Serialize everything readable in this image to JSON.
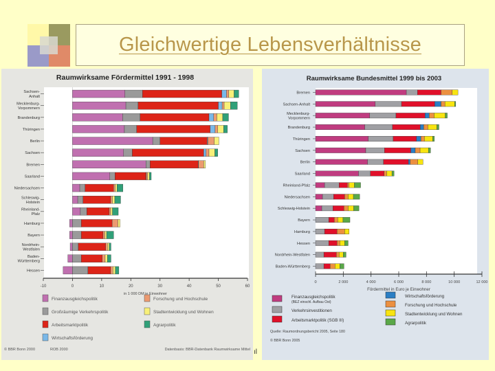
{
  "slide": {
    "title": "Gleichwertige Lebensverhältnisse",
    "background_color": "#ffffc8",
    "title_color": "#b8964a",
    "logo_colors": [
      "#fff8a8",
      "#9a9a60",
      "#9a9ac8",
      "#e08a68",
      "#d8d8d0"
    ]
  },
  "chart_data": [
    {
      "type": "bar",
      "orientation": "horizontal",
      "stacked": true,
      "title": "Raumwirksame Fördermittel 1991 - 1998",
      "xlabel": "in 1 000 DM je Einwohner",
      "ylabel": "",
      "xlim": [
        -10,
        60
      ],
      "xticks": [
        -10,
        0,
        10,
        20,
        30,
        40,
        50,
        60
      ],
      "xtick_labels": [
        "-10",
        "0",
        "10",
        "20",
        "30",
        "40",
        "50",
        "60"
      ],
      "grid": false,
      "legend_position": "bottom",
      "panel_background": "#e6e6e2",
      "plot_background": "#ffffff",
      "categories": [
        "Sachsen-Anhalt",
        "Mecklenburg-Vorpommern",
        "Brandenburg",
        "Thüringen",
        "Berlin",
        "Sachsen",
        "Bremen",
        "Saarland",
        "Niedersachsen",
        "Schleswig-Holstein",
        "Rheinland-Pfalz",
        "Hamburg",
        "Bayern",
        "Nordrhein-Westfalen",
        "Baden-Württemberg",
        "Hessen"
      ],
      "category_lines": [
        [
          "Sachsen-",
          "Anhalt"
        ],
        [
          "Mecklenburg-",
          "Vorpommern"
        ],
        [
          "Brandenburg"
        ],
        [
          "Thüringen"
        ],
        [
          "Berlin"
        ],
        [
          "Sachsen"
        ],
        [
          "Bremen"
        ],
        [
          "Saarland"
        ],
        [
          "Niedersachsen"
        ],
        [
          "Schleswig-",
          "Holstein"
        ],
        [
          "Rheinland-",
          "Pfalz"
        ],
        [
          "Hamburg"
        ],
        [
          "Bayern"
        ],
        [
          "Nordrhein-",
          "Westfalen"
        ],
        [
          "Baden-",
          "Württemberg"
        ],
        [
          "Hessen"
        ]
      ],
      "series": [
        {
          "name": "Finanzausgleichspolitik",
          "color": "#c070b0",
          "values": [
            18,
            18.3,
            17.2,
            17.8,
            27.5,
            17.5,
            25.2,
            12.8,
            2.5,
            1.8,
            2.7,
            -1,
            -1,
            -0.8,
            -1.6,
            -3.2
          ]
        },
        {
          "name": "Großräumige Verkehrspolitik",
          "color": "#9a9a9a",
          "values": [
            6,
            4.2,
            6,
            4.2,
            2.5,
            3,
            1.4,
            1.8,
            1.8,
            1.8,
            2.2,
            3,
            3,
            2,
            3,
            5.3
          ]
        },
        {
          "name": "Arbeitsmarktpolitik",
          "color": "#dd2418",
          "values": [
            27.2,
            27.5,
            23.6,
            25.2,
            16.2,
            24.5,
            16.5,
            10.6,
            9.8,
            9.5,
            7.7,
            10.6,
            7.5,
            9.4,
            7.2,
            7.8
          ]
        },
        {
          "name": "Wirtschaftsförderung",
          "color": "#7ab8e8",
          "values": [
            1.6,
            1.3,
            1.6,
            1.7,
            0.2,
            0.8,
            0.1,
            0.1,
            0,
            0,
            0,
            0,
            0,
            0,
            0,
            0
          ]
        },
        {
          "name": "Forschung und Hochschule",
          "color": "#ec9a70",
          "values": [
            0.8,
            0.7,
            1.1,
            0.9,
            2.2,
            1,
            1.8,
            0.5,
            0.6,
            0.6,
            0.5,
            2,
            0.6,
            0.6,
            1,
            0.8
          ]
        },
        {
          "name": "Stadtentwicklung und Wohnen",
          "color": "#f8f078",
          "values": [
            1.8,
            2.2,
            2,
            2,
            1.6,
            2,
            0.6,
            0.6,
            0.6,
            0.8,
            0.6,
            0.7,
            0.6,
            0.6,
            0.8,
            0.8
          ]
        },
        {
          "name": "Agrarpolitik",
          "color": "#30a078",
          "values": [
            1.6,
            2.3,
            2,
            1.3,
            0,
            1,
            0,
            0.6,
            2,
            2,
            2,
            0,
            2.4,
            0.6,
            1.2,
            1.2
          ]
        }
      ],
      "footer": {
        "left": "© BBR Bonn 2000",
        "middle": "ROB 2000",
        "right": "Datenbasis: BBR-Datenbank Raumwirksame Mittel"
      }
    },
    {
      "type": "bar",
      "orientation": "horizontal",
      "stacked": true,
      "title": "Raumwirksame Bundesmittel 1999 bis 2003",
      "xlabel": "Fördermittel in Euro je Einwohner",
      "ylabel": "",
      "xlim": [
        0,
        12000
      ],
      "xticks": [
        0,
        2000,
        4000,
        6000,
        8000,
        10000,
        12000
      ],
      "xtick_labels": [
        "0",
        "2 000",
        "4 000",
        "6 000",
        "8 000",
        "10 000",
        "12 000"
      ],
      "grid": false,
      "legend_position": "bottom",
      "panel_background": "#dde4ec",
      "plot_background": "#ffffff",
      "categories": [
        "Bremen",
        "Sachsen-Anhalt",
        "Mecklenburg-Vorpommern",
        "Brandenburg",
        "Thüringen",
        "Sachsen",
        "Berlin",
        "Saarland",
        "Rheinland-Pfalz",
        "Niedersachsen",
        "Schleswig-Holstein",
        "Bayern",
        "Hamburg",
        "Hessen",
        "Nordrhein-Westfalen",
        "Baden-Württemberg"
      ],
      "category_lines": [
        [
          "Bremen"
        ],
        [
          "Sachsen-Anhalt"
        ],
        [
          "Mecklenburg-",
          "Vorpommern"
        ],
        [
          "Brandenburg"
        ],
        [
          "Thüringen"
        ],
        [
          "Sachsen"
        ],
        [
          "Berlin"
        ],
        [
          "Saarland"
        ],
        [
          "Rheinland-Pfalz"
        ],
        [
          "Niedersachsen"
        ],
        [
          "Schleswig-Holstein"
        ],
        [
          "Bayern"
        ],
        [
          "Hamburg"
        ],
        [
          "Hessen"
        ],
        [
          "Nordrhein-Westfalen"
        ],
        [
          "Baden-Württemberg"
        ]
      ],
      "series": [
        {
          "name": "Finanzausgleichspolitik (BEZ einschl. Aufbau Ost)",
          "color": "#c03c80",
          "values": [
            6550,
            4300,
            3900,
            3550,
            3800,
            3620,
            3750,
            3100,
            650,
            500,
            450,
            0,
            0,
            0,
            0,
            0
          ]
        },
        {
          "name": "Verkehrsinvestitionen",
          "color": "#a0a0a4",
          "values": [
            800,
            1900,
            1900,
            2000,
            1800,
            1350,
            1150,
            850,
            1050,
            800,
            800,
            950,
            650,
            950,
            600,
            600
          ]
        },
        {
          "name": "Arbeitsmarktpolitik (SGB III)",
          "color": "#e0102a",
          "values": [
            1700,
            2400,
            2100,
            2000,
            1680,
            1900,
            1800,
            1000,
            600,
            800,
            800,
            400,
            900,
            600,
            900,
            450
          ]
        },
        {
          "name": "Wirtschaftsförderung",
          "color": "#2a7ec4",
          "values": [
            0,
            450,
            300,
            250,
            320,
            320,
            120,
            0,
            0,
            0,
            0,
            0,
            0,
            0,
            0,
            0
          ]
        },
        {
          "name": "Forschung und Hochschule",
          "color": "#ec9040",
          "values": [
            800,
            280,
            350,
            300,
            250,
            350,
            550,
            180,
            120,
            250,
            300,
            250,
            550,
            200,
            200,
            350
          ]
        },
        {
          "name": "Stadtentwicklung und Wohnen",
          "color": "#f8e410",
          "values": [
            420,
            700,
            800,
            650,
            600,
            600,
            380,
            380,
            380,
            380,
            400,
            380,
            320,
            350,
            300,
            350
          ]
        },
        {
          "name": "Agrarpolitik",
          "color": "#5aa848",
          "values": [
            0,
            80,
            150,
            150,
            120,
            150,
            0,
            150,
            450,
            450,
            380,
            500,
            0,
            250,
            200,
            300
          ]
        }
      ],
      "footer": {
        "source": "Quelle: Raumordnungsbericht 2005, Seite 180",
        "copyright": "© BBR Bonn 2005"
      }
    }
  ]
}
